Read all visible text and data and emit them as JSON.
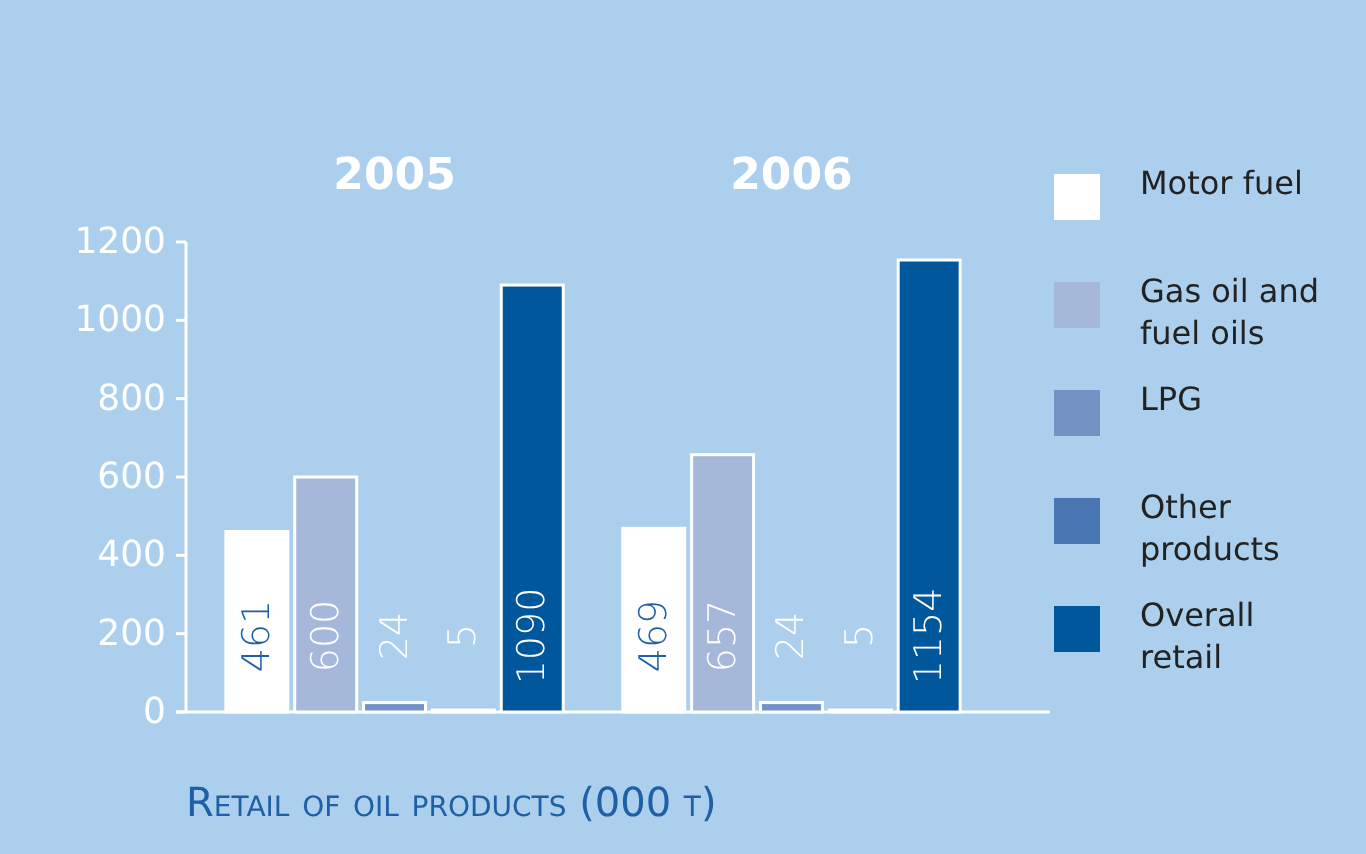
{
  "chart_data": {
    "type": "bar",
    "title": "Retail of oil products (000 t)",
    "categories": [
      "2005",
      "2006"
    ],
    "series": [
      {
        "name": "Motor fuel",
        "color": "#ffffff",
        "values": [
          461,
          469
        ]
      },
      {
        "name": "Gas oil and fuel oils",
        "color": "#a6b8da",
        "values": [
          600,
          657
        ]
      },
      {
        "name": "LPG",
        "color": "#7393c4",
        "values": [
          24,
          24
        ]
      },
      {
        "name": "Other products",
        "color": "#4a77b4",
        "values": [
          5,
          5
        ]
      },
      {
        "name": "Overall retail",
        "color": "#00579b",
        "values": [
          1090,
          1154
        ]
      }
    ],
    "ylim": [
      0,
      1200
    ],
    "yticks": [
      0,
      200,
      400,
      600,
      800,
      1000,
      1200
    ],
    "data_labels": true,
    "legend": "right",
    "grid": false
  }
}
